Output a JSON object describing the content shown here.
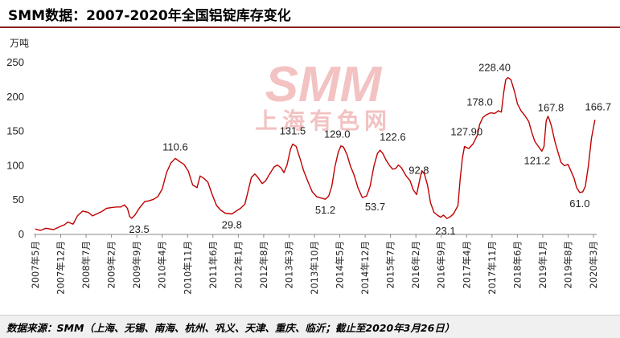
{
  "title": "SMM数据：2007-2020年全国铝锭库存变化",
  "source": "数据来源：SMM（上海、无锡、南海、杭州、巩义、天津、重庆、临沂；截止至2020年3月26日）",
  "watermark": {
    "logo": "SMM",
    "subtitle": "上海有色网"
  },
  "colors": {
    "line": "#c00000",
    "accent": "#8a1f1f",
    "watermark": "#f2b8b8"
  },
  "chart_data": {
    "type": "line",
    "title": "SMM数据：2007-2020年全国铝锭库存变化",
    "ylabel": "万吨",
    "ylim": [
      0,
      250
    ],
    "yticks": [
      0,
      50,
      100,
      150,
      200,
      250
    ],
    "x_start": "2007-05",
    "x_end": "2020-03",
    "xtick_labels": [
      "2007年5月",
      "2007年12月",
      "2008年7月",
      "2009年2月",
      "2009年9月",
      "2010年4月",
      "2010年11月",
      "2011年6月",
      "2012年1月",
      "2012年8月",
      "2013年3月",
      "2013年10月",
      "2014年5月",
      "2014年12月",
      "2015年7月",
      "2016年2月",
      "2016年9月",
      "2017年4月",
      "2017年11月",
      "2018年6月",
      "2019年1月",
      "2019年8月",
      "2020年3月"
    ],
    "data_labels": [
      {
        "t": 2009.72,
        "value": 23.5,
        "text": "23.5"
      },
      {
        "t": 2010.55,
        "value": 110.6,
        "text": "110.6"
      },
      {
        "t": 2011.85,
        "value": 29.8,
        "text": "29.8"
      },
      {
        "t": 2013.25,
        "value": 131.5,
        "text": "131.5"
      },
      {
        "t": 2014.0,
        "value": 51.2,
        "text": "51.2"
      },
      {
        "t": 2014.42,
        "value": 129.0,
        "text": "129.0"
      },
      {
        "t": 2014.85,
        "value": 53.7,
        "text": "53.7"
      },
      {
        "t": 2015.55,
        "value": 122.6,
        "text": "122.6"
      },
      {
        "t": 2016.3,
        "value": 92.8,
        "text": "92.8"
      },
      {
        "t": 2016.8,
        "value": 23.1,
        "text": "23.1"
      },
      {
        "t": 2017.25,
        "value": 127.9,
        "text": "127.90"
      },
      {
        "t": 2017.55,
        "value": 178.0,
        "text": "178.0"
      },
      {
        "t": 2018.3,
        "value": 228.4,
        "text": "228.40"
      },
      {
        "t": 2018.98,
        "value": 121.2,
        "text": "121.2"
      },
      {
        "t": 2019.15,
        "value": 167.8,
        "text": "167.8"
      },
      {
        "t": 2019.85,
        "value": 61.0,
        "text": "61.0"
      },
      {
        "t": 2020.2,
        "value": 166.7,
        "text": "166.7"
      }
    ],
    "series": [
      {
        "name": "全国铝锭库存",
        "points": [
          [
            2007.33,
            8
          ],
          [
            2007.45,
            6
          ],
          [
            2007.58,
            9
          ],
          [
            2007.75,
            7
          ],
          [
            2007.92,
            12
          ],
          [
            2008.0,
            14
          ],
          [
            2008.08,
            18
          ],
          [
            2008.2,
            15
          ],
          [
            2008.3,
            27
          ],
          [
            2008.42,
            34
          ],
          [
            2008.55,
            32
          ],
          [
            2008.65,
            27
          ],
          [
            2008.75,
            30
          ],
          [
            2008.85,
            33
          ],
          [
            2008.97,
            38
          ],
          [
            2009.08,
            39
          ],
          [
            2009.2,
            40
          ],
          [
            2009.3,
            40
          ],
          [
            2009.38,
            43
          ],
          [
            2009.45,
            38
          ],
          [
            2009.5,
            26
          ],
          [
            2009.55,
            23.5
          ],
          [
            2009.62,
            28
          ],
          [
            2009.72,
            38
          ],
          [
            2009.85,
            48
          ],
          [
            2009.95,
            49
          ],
          [
            2010.05,
            51
          ],
          [
            2010.15,
            55
          ],
          [
            2010.25,
            66
          ],
          [
            2010.35,
            90
          ],
          [
            2010.45,
            104
          ],
          [
            2010.55,
            110.6
          ],
          [
            2010.65,
            106
          ],
          [
            2010.75,
            102
          ],
          [
            2010.85,
            92
          ],
          [
            2010.95,
            72
          ],
          [
            2011.05,
            68
          ],
          [
            2011.12,
            85
          ],
          [
            2011.2,
            82
          ],
          [
            2011.3,
            76
          ],
          [
            2011.4,
            58
          ],
          [
            2011.5,
            42
          ],
          [
            2011.6,
            35
          ],
          [
            2011.7,
            31
          ],
          [
            2011.85,
            29.8
          ],
          [
            2011.95,
            34
          ],
          [
            2012.05,
            38
          ],
          [
            2012.15,
            44
          ],
          [
            2012.22,
            62
          ],
          [
            2012.3,
            83
          ],
          [
            2012.38,
            88
          ],
          [
            2012.45,
            83
          ],
          [
            2012.55,
            74
          ],
          [
            2012.63,
            78
          ],
          [
            2012.72,
            88
          ],
          [
            2012.82,
            98
          ],
          [
            2012.9,
            101
          ],
          [
            2012.98,
            97
          ],
          [
            2013.05,
            90
          ],
          [
            2013.12,
            101
          ],
          [
            2013.2,
            124
          ],
          [
            2013.25,
            131.5
          ],
          [
            2013.33,
            128
          ],
          [
            2013.42,
            110
          ],
          [
            2013.5,
            93
          ],
          [
            2013.6,
            77
          ],
          [
            2013.7,
            62
          ],
          [
            2013.8,
            55
          ],
          [
            2013.9,
            53
          ],
          [
            2014.0,
            51.2
          ],
          [
            2014.08,
            56
          ],
          [
            2014.15,
            70
          ],
          [
            2014.22,
            98
          ],
          [
            2014.3,
            120
          ],
          [
            2014.36,
            129
          ],
          [
            2014.42,
            127
          ],
          [
            2014.5,
            116
          ],
          [
            2014.58,
            99
          ],
          [
            2014.66,
            87
          ],
          [
            2014.75,
            68
          ],
          [
            2014.85,
            53.7
          ],
          [
            2014.95,
            56
          ],
          [
            2015.03,
            70
          ],
          [
            2015.12,
            100
          ],
          [
            2015.2,
            118
          ],
          [
            2015.26,
            122.6
          ],
          [
            2015.32,
            118
          ],
          [
            2015.4,
            108
          ],
          [
            2015.48,
            100
          ],
          [
            2015.55,
            95
          ],
          [
            2015.62,
            96
          ],
          [
            2015.68,
            101
          ],
          [
            2015.75,
            97
          ],
          [
            2015.85,
            86
          ],
          [
            2015.95,
            78
          ],
          [
            2016.02,
            65
          ],
          [
            2016.1,
            58
          ],
          [
            2016.18,
            82
          ],
          [
            2016.22,
            92.8
          ],
          [
            2016.28,
            88
          ],
          [
            2016.35,
            72
          ],
          [
            2016.42,
            46
          ],
          [
            2016.5,
            32
          ],
          [
            2016.58,
            28
          ],
          [
            2016.65,
            25
          ],
          [
            2016.72,
            28
          ],
          [
            2016.8,
            23.1
          ],
          [
            2016.88,
            26
          ],
          [
            2016.95,
            30
          ],
          [
            2017.05,
            42
          ],
          [
            2017.1,
            80
          ],
          [
            2017.15,
            110
          ],
          [
            2017.2,
            127.9
          ],
          [
            2017.3,
            125
          ],
          [
            2017.4,
            132
          ],
          [
            2017.5,
            145
          ],
          [
            2017.55,
            160
          ],
          [
            2017.62,
            170
          ],
          [
            2017.7,
            174
          ],
          [
            2017.8,
            177
          ],
          [
            2017.9,
            176
          ],
          [
            2017.98,
            180
          ],
          [
            2018.05,
            178
          ],
          [
            2018.1,
            205
          ],
          [
            2018.15,
            225
          ],
          [
            2018.2,
            228.4
          ],
          [
            2018.27,
            225
          ],
          [
            2018.35,
            208
          ],
          [
            2018.42,
            190
          ],
          [
            2018.5,
            180
          ],
          [
            2018.6,
            172
          ],
          [
            2018.68,
            164
          ],
          [
            2018.75,
            148
          ],
          [
            2018.82,
            135
          ],
          [
            2018.9,
            128
          ],
          [
            2018.98,
            121.2
          ],
          [
            2019.03,
            128
          ],
          [
            2019.08,
            165
          ],
          [
            2019.12,
            172
          ],
          [
            2019.15,
            167.8
          ],
          [
            2019.2,
            158
          ],
          [
            2019.28,
            135
          ],
          [
            2019.35,
            120
          ],
          [
            2019.42,
            105
          ],
          [
            2019.5,
            100
          ],
          [
            2019.58,
            102
          ],
          [
            2019.65,
            92
          ],
          [
            2019.72,
            82
          ],
          [
            2019.78,
            68
          ],
          [
            2019.85,
            61.0
          ],
          [
            2019.92,
            62
          ],
          [
            2019.98,
            70
          ],
          [
            2020.05,
            100
          ],
          [
            2020.12,
            140
          ],
          [
            2020.2,
            166.7
          ]
        ]
      }
    ]
  }
}
